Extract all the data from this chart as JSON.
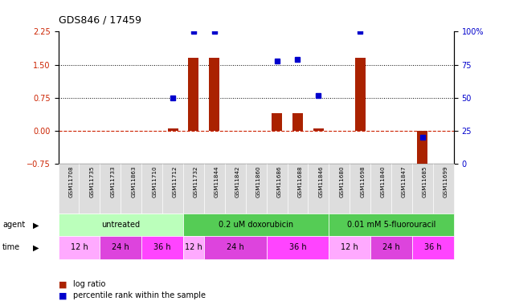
{
  "title": "GDS846 / 17459",
  "samples": [
    "GSM11708",
    "GSM11735",
    "GSM11733",
    "GSM11863",
    "GSM11710",
    "GSM11712",
    "GSM11732",
    "GSM11844",
    "GSM11842",
    "GSM11860",
    "GSM11686",
    "GSM11688",
    "GSM11846",
    "GSM11680",
    "GSM11698",
    "GSM11840",
    "GSM11847",
    "GSM11685",
    "GSM11699"
  ],
  "log_ratio": [
    0,
    0,
    0,
    0,
    0,
    0.05,
    1.65,
    1.65,
    0,
    0,
    0.4,
    0.4,
    0.05,
    0,
    1.65,
    0,
    0,
    -0.85,
    0
  ],
  "percentile": [
    null,
    null,
    null,
    null,
    null,
    50,
    100,
    100,
    null,
    null,
    78,
    79,
    52,
    null,
    100,
    null,
    null,
    20,
    null
  ],
  "ylim_left": [
    -0.75,
    2.25
  ],
  "ylim_right": [
    0,
    100
  ],
  "yticks_left": [
    -0.75,
    0,
    0.75,
    1.5,
    2.25
  ],
  "yticks_right": [
    0,
    25,
    50,
    75,
    100
  ],
  "ytick_labels_right": [
    "0",
    "25",
    "50",
    "75",
    "100%"
  ],
  "hlines": [
    0.75,
    1.5
  ],
  "agent_groups": [
    {
      "label": "untreated",
      "start": 0,
      "end": 6,
      "color": "#bbffbb"
    },
    {
      "label": "0.2 uM doxorubicin",
      "start": 6,
      "end": 13,
      "color": "#55cc55"
    },
    {
      "label": "0.01 mM 5-fluorouracil",
      "start": 13,
      "end": 19,
      "color": "#55cc55"
    }
  ],
  "time_groups": [
    {
      "label": "12 h",
      "start": 0,
      "end": 2,
      "color": "#ffaaff"
    },
    {
      "label": "24 h",
      "start": 2,
      "end": 4,
      "color": "#dd44dd"
    },
    {
      "label": "36 h",
      "start": 4,
      "end": 6,
      "color": "#ff44ff"
    },
    {
      "label": "12 h",
      "start": 6,
      "end": 7,
      "color": "#ffaaff"
    },
    {
      "label": "24 h",
      "start": 7,
      "end": 10,
      "color": "#dd44dd"
    },
    {
      "label": "36 h",
      "start": 10,
      "end": 13,
      "color": "#ff44ff"
    },
    {
      "label": "12 h",
      "start": 13,
      "end": 15,
      "color": "#ffaaff"
    },
    {
      "label": "24 h",
      "start": 15,
      "end": 17,
      "color": "#dd44dd"
    },
    {
      "label": "36 h",
      "start": 17,
      "end": 19,
      "color": "#ff44ff"
    }
  ],
  "bar_color": "#aa2200",
  "point_color": "#0000cc",
  "bar_width": 0.5,
  "zeroline_color": "#cc2200",
  "dotted_line_color": "#000000",
  "background_color": "#ffffff",
  "tick_label_color_left": "#cc2200",
  "tick_label_color_right": "#0000cc",
  "sample_box_color": "#dddddd",
  "legend_bar_label": "log ratio",
  "legend_point_label": "percentile rank within the sample"
}
